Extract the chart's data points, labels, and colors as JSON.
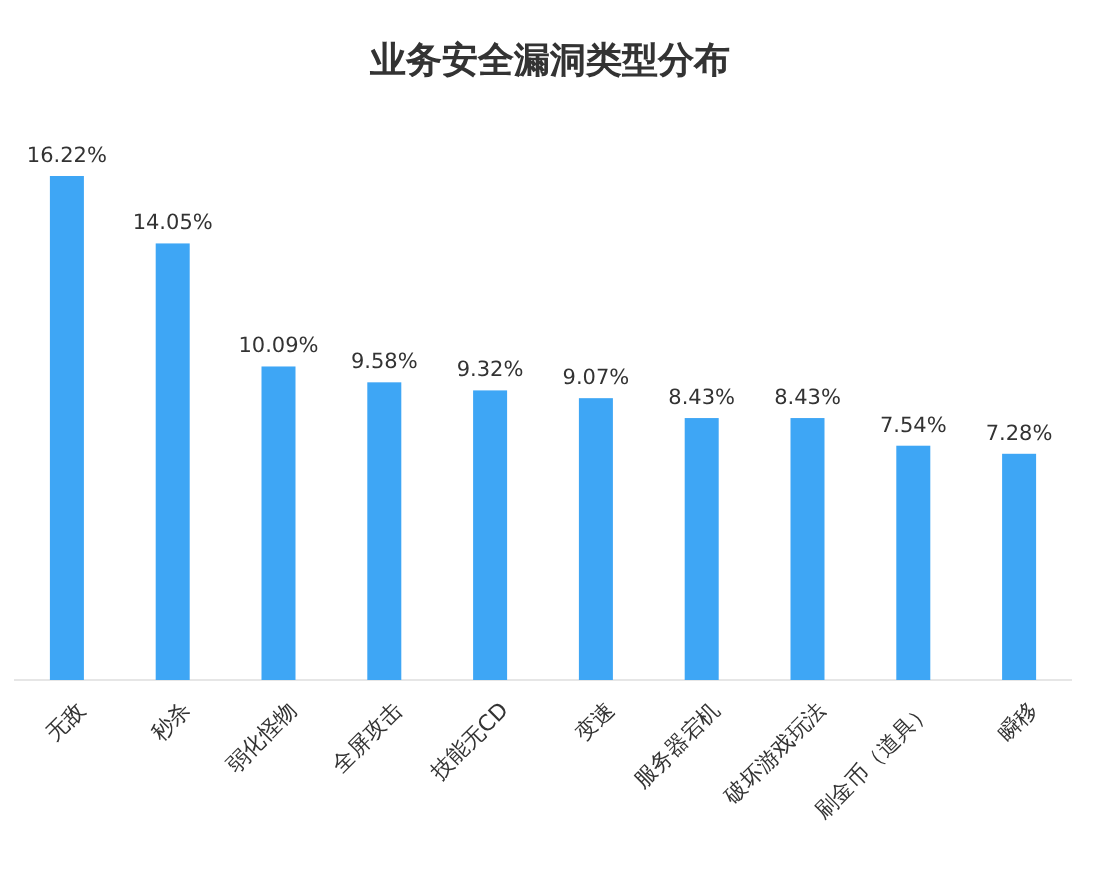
{
  "chart_data": {
    "type": "bar",
    "title": "业务安全漏洞类型分布",
    "categories": [
      "无敌",
      "秒杀",
      "弱化怪物",
      "全屏攻击",
      "技能无CD",
      "变速",
      "服务器宕机",
      "破坏游戏玩法",
      "刷金币（道具）",
      "瞬移"
    ],
    "values": [
      16.22,
      14.05,
      10.09,
      9.58,
      9.32,
      9.07,
      8.43,
      8.43,
      7.54,
      7.28
    ],
    "value_labels": [
      "16.22%",
      "14.05%",
      "10.09%",
      "9.58%",
      "9.32%",
      "9.07%",
      "8.43%",
      "8.43%",
      "7.54%",
      "7.28%"
    ],
    "color": "#3ea6f5"
  }
}
